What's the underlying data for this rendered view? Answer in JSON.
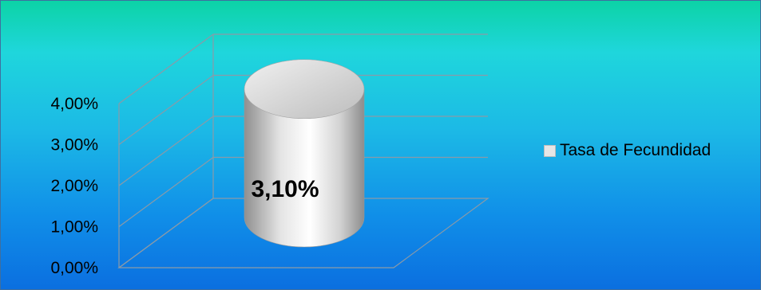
{
  "chart_data": {
    "type": "bar",
    "style": "3d-cylinder",
    "categories": [
      ""
    ],
    "series": [
      {
        "name": "Tasa de Fecundidad",
        "values": [
          3.1
        ]
      }
    ],
    "data_labels": [
      "3,10%"
    ],
    "yticks": [
      "0,00%",
      "1,00%",
      "2,00%",
      "3,00%",
      "4,00%"
    ],
    "ytick_values": [
      0,
      1,
      2,
      3,
      4
    ],
    "ylim": [
      0,
      4
    ],
    "title": "",
    "xlabel": "",
    "ylabel": "",
    "grid": true,
    "legend_position": "right",
    "colors": {
      "bar": "#d9d9d9",
      "grid": "#8a9aa8"
    }
  },
  "legend": {
    "label": "Tasa de Fecundidad"
  }
}
